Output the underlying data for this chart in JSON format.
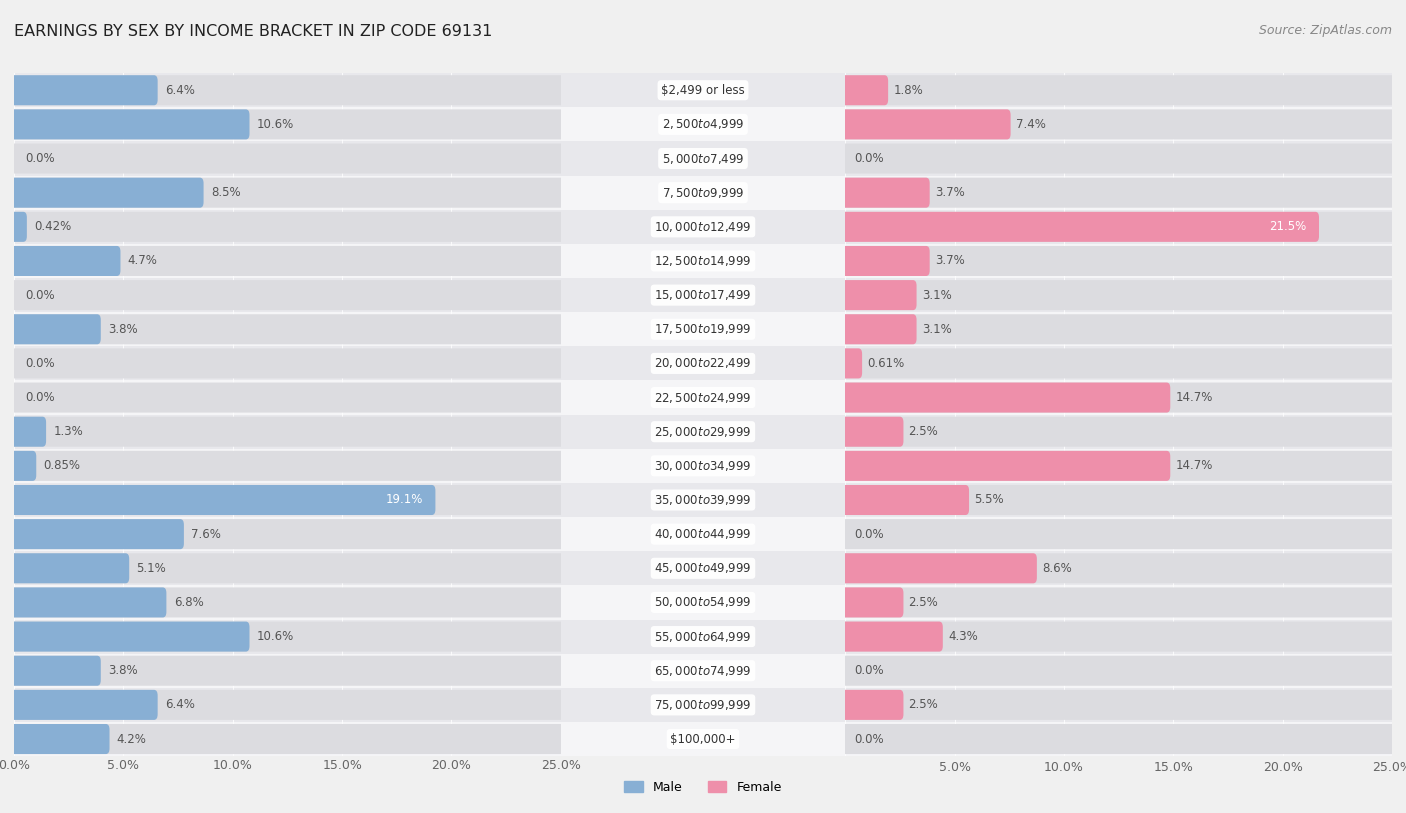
{
  "title": "EARNINGS BY SEX BY INCOME BRACKET IN ZIP CODE 69131",
  "source": "Source: ZipAtlas.com",
  "categories": [
    "$2,499 or less",
    "$2,500 to $4,999",
    "$5,000 to $7,499",
    "$7,500 to $9,999",
    "$10,000 to $12,499",
    "$12,500 to $14,999",
    "$15,000 to $17,499",
    "$17,500 to $19,999",
    "$20,000 to $22,499",
    "$22,500 to $24,999",
    "$25,000 to $29,999",
    "$30,000 to $34,999",
    "$35,000 to $39,999",
    "$40,000 to $44,999",
    "$45,000 to $49,999",
    "$50,000 to $54,999",
    "$55,000 to $64,999",
    "$65,000 to $74,999",
    "$75,000 to $99,999",
    "$100,000+"
  ],
  "male_values": [
    6.4,
    10.6,
    0.0,
    8.5,
    0.42,
    4.7,
    0.0,
    3.8,
    0.0,
    0.0,
    1.3,
    0.85,
    19.1,
    7.6,
    5.1,
    6.8,
    10.6,
    3.8,
    6.4,
    4.2
  ],
  "female_values": [
    1.8,
    7.4,
    0.0,
    3.7,
    21.5,
    3.7,
    3.1,
    3.1,
    0.61,
    14.7,
    2.5,
    14.7,
    5.5,
    0.0,
    8.6,
    2.5,
    4.3,
    0.0,
    2.5,
    0.0
  ],
  "male_color": "#88afd4",
  "female_color": "#ee8faa",
  "background_color": "#f0f0f0",
  "row_even_color": "#e8e8ec",
  "row_odd_color": "#f5f5f7",
  "track_color": "#dcdce0",
  "xlim": 25.0,
  "bar_height": 0.55,
  "title_fontsize": 11.5,
  "label_fontsize": 8.5,
  "tick_fontsize": 9,
  "source_fontsize": 9,
  "category_fontsize": 8.5,
  "inside_label_threshold_male": 15.0,
  "inside_label_threshold_female": 18.0
}
